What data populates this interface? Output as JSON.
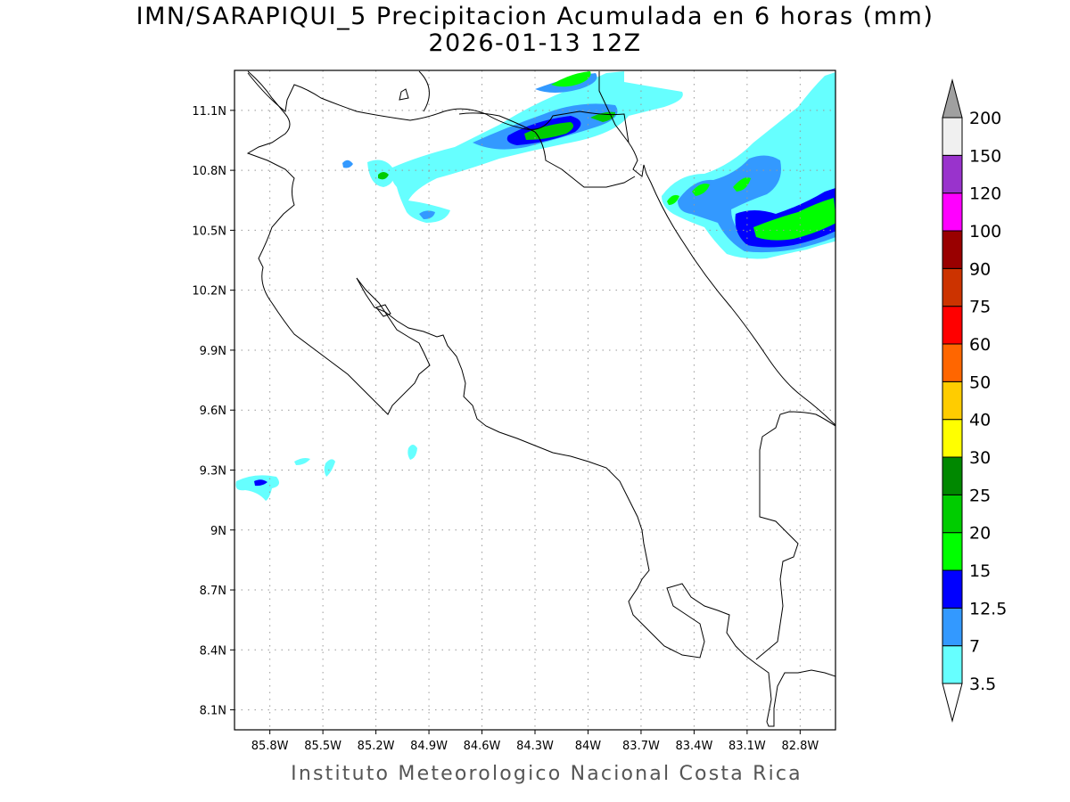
{
  "header": {
    "title_line1": "IMN/SARAPIQUI_5 Precipitacion Acumulada en 6 horas (mm)",
    "title_line2": "2026-01-13 12Z"
  },
  "footer": {
    "credit": "Instituto Meteorologico Nacional Costa Rica"
  },
  "map": {
    "lon_range": [
      -86.0,
      -82.6
    ],
    "lat_range": [
      8.0,
      11.3
    ],
    "lat_ticks": [
      {
        "value": 11.1,
        "label": "11.1N"
      },
      {
        "value": 10.8,
        "label": "10.8N"
      },
      {
        "value": 10.5,
        "label": "10.5N"
      },
      {
        "value": 10.2,
        "label": "10.2N"
      },
      {
        "value": 9.9,
        "label": "9.9N"
      },
      {
        "value": 9.6,
        "label": "9.6N"
      },
      {
        "value": 9.3,
        "label": "9.3N"
      },
      {
        "value": 9.0,
        "label": "9N"
      },
      {
        "value": 8.7,
        "label": "8.7N"
      },
      {
        "value": 8.4,
        "label": "8.4N"
      },
      {
        "value": 8.1,
        "label": "8.1N"
      }
    ],
    "lon_ticks": [
      {
        "value": -85.8,
        "label": "85.8W"
      },
      {
        "value": -85.5,
        "label": "85.5W"
      },
      {
        "value": -85.2,
        "label": "85.2W"
      },
      {
        "value": -84.9,
        "label": "84.9W"
      },
      {
        "value": -84.6,
        "label": "84.6W"
      },
      {
        "value": -84.3,
        "label": "84.3W"
      },
      {
        "value": -84.0,
        "label": "84W"
      },
      {
        "value": -83.7,
        "label": "83.7W"
      },
      {
        "value": -83.4,
        "label": "83.4W"
      },
      {
        "value": -83.1,
        "label": "83.1W"
      },
      {
        "value": -82.8,
        "label": "82.8W"
      }
    ],
    "grid": true,
    "grid_style": "dotted"
  },
  "colorbar": {
    "units": "mm",
    "levels": [
      {
        "label": "3.5",
        "color": "#ffffff"
      },
      {
        "label": "7",
        "color": "#66ffff"
      },
      {
        "label": "12.5",
        "color": "#3399ff"
      },
      {
        "label": "15",
        "color": "#0000ff"
      },
      {
        "label": "20",
        "color": "#00ff00"
      },
      {
        "label": "25",
        "color": "#00cc00"
      },
      {
        "label": "30",
        "color": "#008800"
      },
      {
        "label": "40",
        "color": "#ffff00"
      },
      {
        "label": "50",
        "color": "#ffcc00"
      },
      {
        "label": "60",
        "color": "#ff6600"
      },
      {
        "label": "75",
        "color": "#ff0000"
      },
      {
        "label": "90",
        "color": "#cc3300"
      },
      {
        "label": "100",
        "color": "#990000"
      },
      {
        "label": "120",
        "color": "#ff00ff"
      },
      {
        "label": "150",
        "color": "#9933cc"
      },
      {
        "label": "200",
        "color": "#f0f0f0"
      }
    ],
    "over_color": "#a0a0a0",
    "under_color": "#ffffff"
  },
  "colors": {
    "coast": "#000000",
    "grid": "#999999",
    "p1": "#66ffff",
    "p2": "#3399ff",
    "p3": "#0000ff",
    "p4": "#00ff00",
    "p5": "#00cc00"
  }
}
